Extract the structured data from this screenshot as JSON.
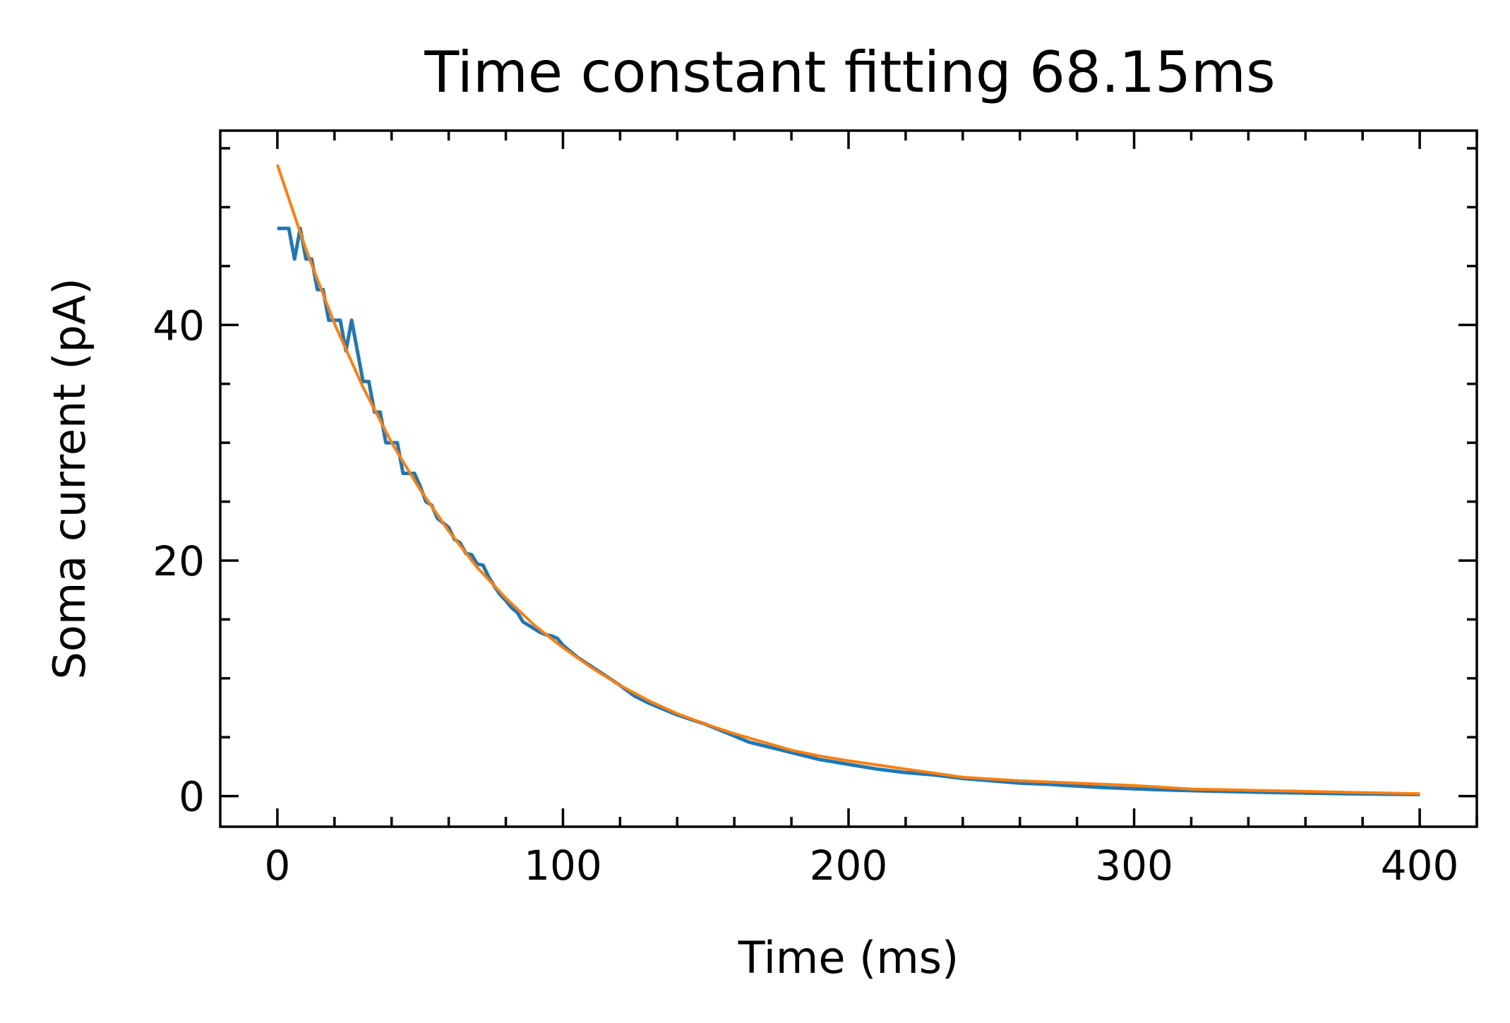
{
  "chart_data": {
    "type": "line",
    "title": "Time constant fitting 68.15ms",
    "xlabel": "Time (ms)",
    "ylabel": "Soma current (pA)",
    "xlim": [
      -20,
      420
    ],
    "ylim": [
      -2.6,
      56.5
    ],
    "xticks": [
      0,
      100,
      200,
      300,
      400
    ],
    "xtick_labels": [
      "0",
      "100",
      "200",
      "300",
      "400"
    ],
    "yticks": [
      0,
      20,
      40
    ],
    "ytick_labels": [
      "0",
      "20",
      "40"
    ],
    "x_minor_step": 20,
    "y_minor_step": 5,
    "grid": false,
    "legend": "none",
    "colors": {
      "recorded": "#1f77b4",
      "fit": "#ff7f0e"
    },
    "series": [
      {
        "x": [
          0,
          2,
          4,
          6,
          8,
          10,
          12,
          14,
          16,
          18,
          20,
          22,
          24,
          26,
          28,
          30,
          32,
          34,
          36,
          38,
          40,
          42,
          44,
          46,
          48,
          50,
          52,
          54,
          56,
          58,
          60,
          62,
          64,
          66,
          68,
          70,
          72,
          74,
          76,
          78,
          80,
          82,
          84,
          86,
          88,
          90,
          92,
          94,
          96,
          98,
          100,
          105,
          110,
          115,
          120,
          125,
          130,
          135,
          140,
          145,
          150,
          155,
          160,
          165,
          170,
          175,
          180,
          185,
          190,
          195,
          200,
          210,
          220,
          230,
          240,
          250,
          260,
          270,
          280,
          290,
          300,
          310,
          320,
          330,
          340,
          350,
          360,
          370,
          380,
          390,
          400
        ],
        "values": [
          48.2,
          48.2,
          48.2,
          45.6,
          48.2,
          45.6,
          45.6,
          43,
          43,
          40.4,
          40.4,
          40.4,
          37.8,
          40.4,
          37.8,
          35.2,
          35.2,
          32.6,
          32.6,
          30,
          30,
          30,
          27.4,
          27.4,
          27.4,
          26.3,
          25,
          24.7,
          23.6,
          23.2,
          22.8,
          21.8,
          21.5,
          20.6,
          20.5,
          19.7,
          19.6,
          18.6,
          17.8,
          17.1,
          16.6,
          16,
          15.6,
          14.8,
          14.5,
          14.2,
          13.9,
          13.7,
          13.6,
          13.4,
          12.8,
          11.8,
          11,
          10.2,
          9.4,
          8.5,
          7.9,
          7.4,
          6.9,
          6.5,
          6.1,
          5.6,
          5.1,
          4.6,
          4.3,
          4,
          3.7,
          3.4,
          3.1,
          2.9,
          2.7,
          2.3,
          2,
          1.8,
          1.5,
          1.3,
          1.1,
          1,
          0.85,
          0.72,
          0.62,
          0.53,
          0.46,
          0.4,
          0.35,
          0.3,
          0.26,
          0.22,
          0.19,
          0.16,
          0.14
        ]
      },
      {
        "x": [
          0,
          10,
          20,
          30,
          40,
          50,
          60,
          70,
          80,
          90,
          100,
          110,
          120,
          130,
          140,
          150,
          160,
          170,
          180,
          190,
          200,
          220,
          240,
          260,
          280,
          300,
          320,
          340,
          360,
          380,
          400
        ],
        "values": [
          53.6,
          46.4,
          40.1,
          34.7,
          30,
          26,
          22.5,
          19.4,
          16.8,
          14.5,
          12.6,
          10.9,
          9.4,
          8.1,
          7,
          6.1,
          5.3,
          4.6,
          3.9,
          3.4,
          3,
          2.3,
          1.6,
          1.3,
          1.1,
          0.9,
          0.6,
          0.5,
          0.4,
          0.3,
          0.2
        ]
      }
    ]
  }
}
